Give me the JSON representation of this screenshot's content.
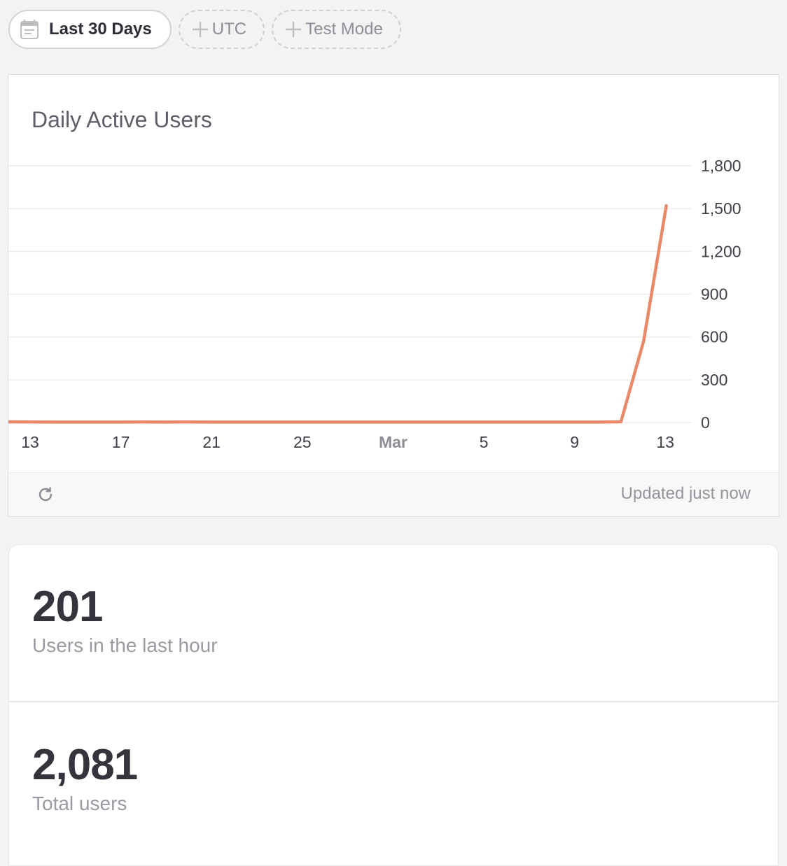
{
  "filters": {
    "date_range": "Last 30 Days",
    "timezone": "UTC",
    "test_mode": "Test Mode"
  },
  "chart_card": {
    "title": "Daily Active Users",
    "updated": "Updated just now",
    "line_color": "#e8896a"
  },
  "chart_data": {
    "type": "line",
    "title": "Daily Active Users",
    "x_ticks": [
      {
        "day": 0,
        "label": "13"
      },
      {
        "day": 4,
        "label": "17"
      },
      {
        "day": 8,
        "label": "21"
      },
      {
        "day": 12,
        "label": "25"
      },
      {
        "day": 16,
        "label": "Mar"
      },
      {
        "day": 20,
        "label": "5"
      },
      {
        "day": 24,
        "label": "9"
      },
      {
        "day": 28,
        "label": "13"
      }
    ],
    "y_ticks": [
      0,
      300,
      600,
      900,
      1200,
      1500,
      1800
    ],
    "y_tick_labels": [
      "0",
      "300",
      "600",
      "900",
      "1,200",
      "1,500",
      "1,800"
    ],
    "ylim": [
      0,
      1800
    ],
    "grid": true,
    "series": [
      {
        "values": [
          5,
          4,
          3,
          3,
          3,
          3,
          4,
          3,
          4,
          3,
          3,
          3,
          3,
          3,
          3,
          3,
          3,
          3,
          3,
          3,
          3,
          3,
          3,
          3,
          3,
          3,
          3,
          5,
          570,
          1520
        ]
      }
    ]
  },
  "stats": [
    {
      "value": "201",
      "label": "Users in the last hour"
    },
    {
      "value": "2,081",
      "label": "Total users"
    }
  ]
}
